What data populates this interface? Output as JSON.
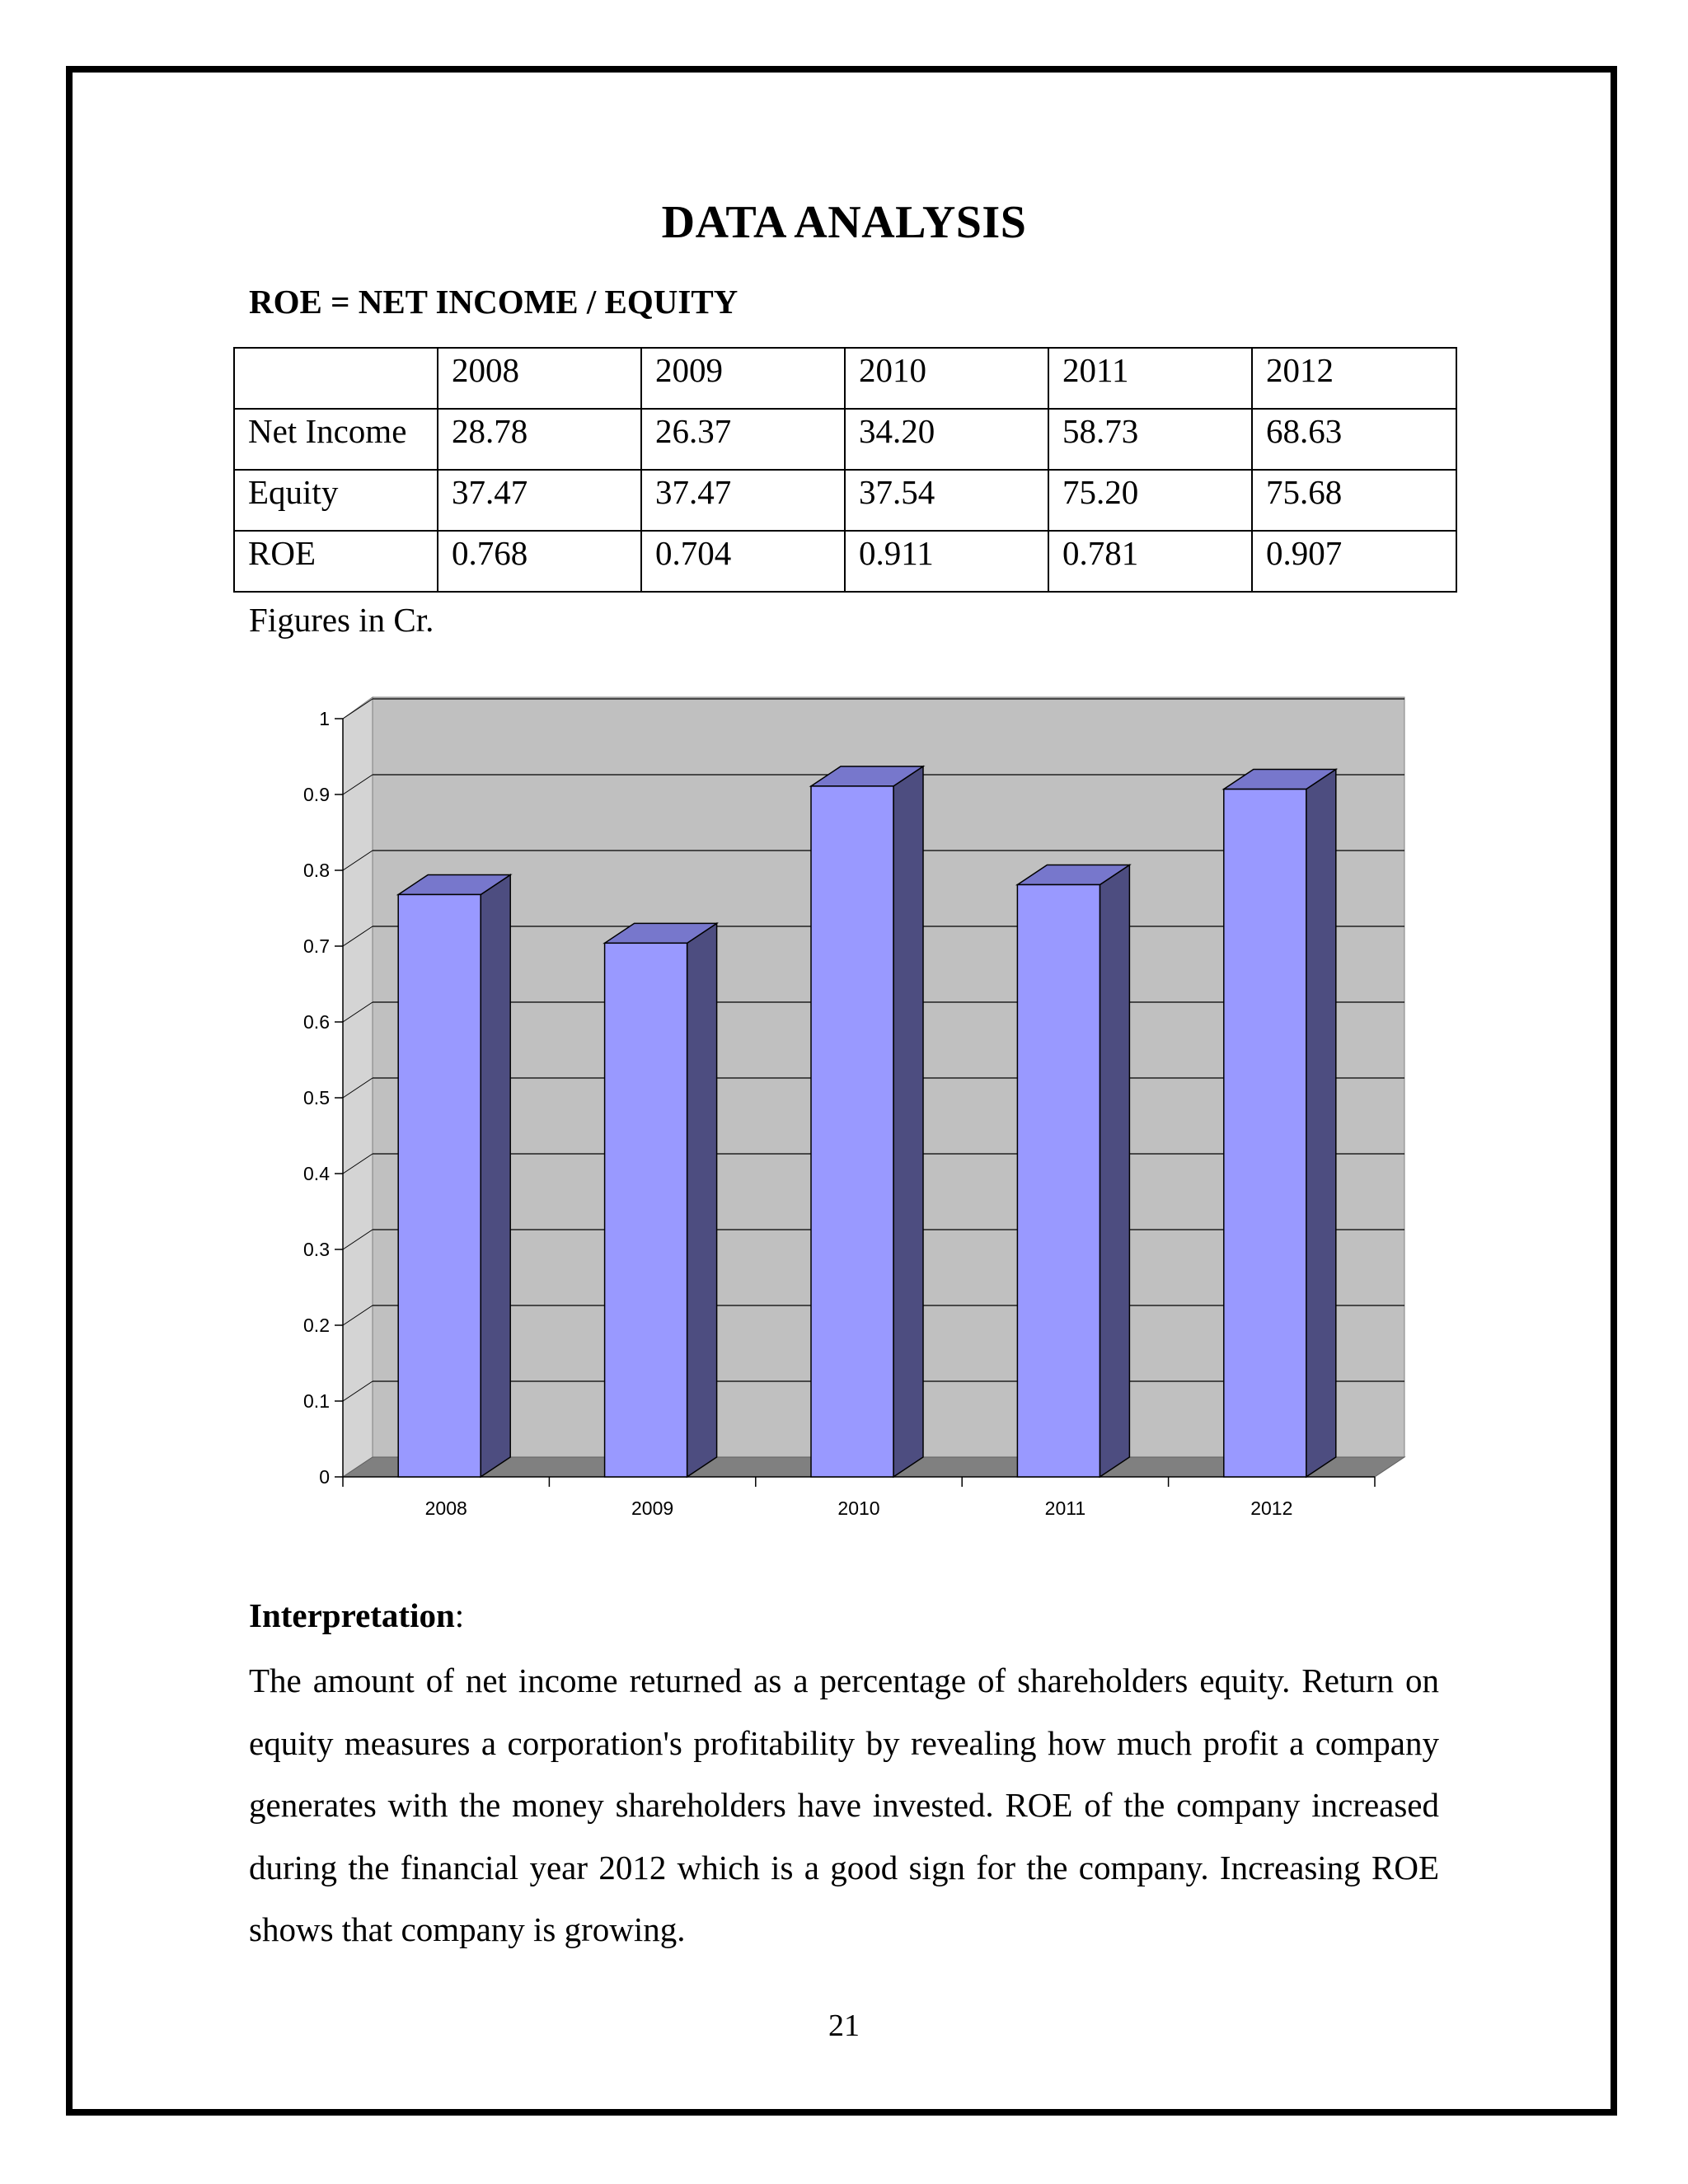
{
  "page": {
    "title": "DATA ANALYSIS",
    "formula": "ROE = NET INCOME / EQUITY",
    "figures_note": "Figures in Cr.",
    "interpretation_heading": "Interpretation",
    "interpretation_colon": ":",
    "interpretation_text": "The amount of net income returned as a percentage of shareholders equity. Return on equity measures a corporation's profitability by revealing how much profit a company generates with the money shareholders have invested. ROE of the company increased during the financial year 2012 which is a good sign for the company. Increasing ROE shows that company is growing.",
    "page_number": "21"
  },
  "table": {
    "header": [
      "",
      "2008",
      "2009",
      "2010",
      "2011",
      "2012"
    ],
    "rows": [
      [
        "Net Income",
        "28.78",
        "26.37",
        "34.20",
        "58.73",
        "68.63"
      ],
      [
        "Equity",
        "37.47",
        "37.47",
        "37.54",
        "75.20",
        "75.68"
      ],
      [
        "ROE",
        "0.768",
        "0.704",
        "0.911",
        "0.781",
        "0.907"
      ]
    ]
  },
  "chart_data": {
    "type": "bar",
    "categories": [
      "2008",
      "2009",
      "2010",
      "2011",
      "2012"
    ],
    "values": [
      0.768,
      0.704,
      0.911,
      0.781,
      0.907
    ],
    "yticks": [
      "0",
      "0.1",
      "0.2",
      "0.3",
      "0.4",
      "0.5",
      "0.6",
      "0.7",
      "0.8",
      "0.9",
      "1"
    ],
    "ylim": [
      0,
      1
    ],
    "grid": true,
    "style": "3d-column",
    "colors": {
      "bar_front": "#9999ff",
      "bar_side": "#4d4d80",
      "bar_top": "#7777cc",
      "wall": "#c0c0c0",
      "floor": "#808080"
    }
  }
}
